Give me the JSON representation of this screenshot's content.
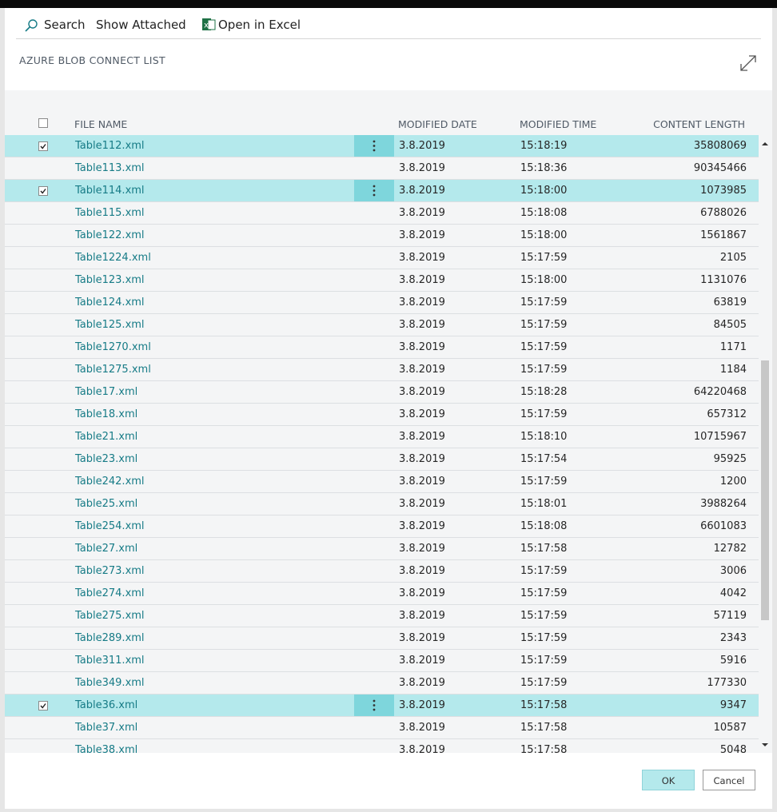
{
  "toolbar": {
    "search": "Search",
    "show_attached": "Show Attached",
    "open_in_excel": "Open in Excel"
  },
  "title": "AZURE BLOB CONNECT LIST",
  "table": {
    "columns": [
      "FILE NAME",
      "MODIFIED DATE",
      "MODIFIED TIME",
      "CONTENT LENGTH"
    ],
    "rows": [
      {
        "cells": [
          "Table112.xml",
          "3.8.2019",
          "15:18:19",
          35808069
        ],
        "selected": true
      },
      {
        "cells": [
          "Table113.xml",
          "3.8.2019",
          "15:18:36",
          90345466
        ],
        "selected": false
      },
      {
        "cells": [
          "Table114.xml",
          "3.8.2019",
          "15:18:00",
          1073985
        ],
        "selected": true
      },
      {
        "cells": [
          "Table115.xml",
          "3.8.2019",
          "15:18:08",
          6788026
        ],
        "selected": false
      },
      {
        "cells": [
          "Table122.xml",
          "3.8.2019",
          "15:18:00",
          1561867
        ],
        "selected": false
      },
      {
        "cells": [
          "Table1224.xml",
          "3.8.2019",
          "15:17:59",
          2105
        ],
        "selected": false
      },
      {
        "cells": [
          "Table123.xml",
          "3.8.2019",
          "15:18:00",
          1131076
        ],
        "selected": false
      },
      {
        "cells": [
          "Table124.xml",
          "3.8.2019",
          "15:17:59",
          63819
        ],
        "selected": false
      },
      {
        "cells": [
          "Table125.xml",
          "3.8.2019",
          "15:17:59",
          84505
        ],
        "selected": false
      },
      {
        "cells": [
          "Table1270.xml",
          "3.8.2019",
          "15:17:59",
          1171
        ],
        "selected": false
      },
      {
        "cells": [
          "Table1275.xml",
          "3.8.2019",
          "15:17:59",
          1184
        ],
        "selected": false
      },
      {
        "cells": [
          "Table17.xml",
          "3.8.2019",
          "15:18:28",
          64220468
        ],
        "selected": false
      },
      {
        "cells": [
          "Table18.xml",
          "3.8.2019",
          "15:17:59",
          657312
        ],
        "selected": false
      },
      {
        "cells": [
          "Table21.xml",
          "3.8.2019",
          "15:18:10",
          10715967
        ],
        "selected": false
      },
      {
        "cells": [
          "Table23.xml",
          "3.8.2019",
          "15:17:54",
          95925
        ],
        "selected": false
      },
      {
        "cells": [
          "Table242.xml",
          "3.8.2019",
          "15:17:59",
          1200
        ],
        "selected": false
      },
      {
        "cells": [
          "Table25.xml",
          "3.8.2019",
          "15:18:01",
          3988264
        ],
        "selected": false
      },
      {
        "cells": [
          "Table254.xml",
          "3.8.2019",
          "15:18:08",
          6601083
        ],
        "selected": false
      },
      {
        "cells": [
          "Table27.xml",
          "3.8.2019",
          "15:17:58",
          12782
        ],
        "selected": false
      },
      {
        "cells": [
          "Table273.xml",
          "3.8.2019",
          "15:17:59",
          3006
        ],
        "selected": false
      },
      {
        "cells": [
          "Table274.xml",
          "3.8.2019",
          "15:17:59",
          4042
        ],
        "selected": false
      },
      {
        "cells": [
          "Table275.xml",
          "3.8.2019",
          "15:17:59",
          57119
        ],
        "selected": false
      },
      {
        "cells": [
          "Table289.xml",
          "3.8.2019",
          "15:17:59",
          2343
        ],
        "selected": false
      },
      {
        "cells": [
          "Table311.xml",
          "3.8.2019",
          "15:17:59",
          5916
        ],
        "selected": false
      },
      {
        "cells": [
          "Table349.xml",
          "3.8.2019",
          "15:17:59",
          177330
        ],
        "selected": false
      },
      {
        "cells": [
          "Table36.xml",
          "3.8.2019",
          "15:17:58",
          9347
        ],
        "selected": true
      },
      {
        "cells": [
          "Table37.xml",
          "3.8.2019",
          "15:17:58",
          10587
        ],
        "selected": false
      },
      {
        "cells": [
          "Table38.xml",
          "3.8.2019",
          "15:17:58",
          5048
        ],
        "selected": false
      }
    ]
  },
  "buttons": {
    "ok": "OK",
    "cancel": "Cancel"
  }
}
